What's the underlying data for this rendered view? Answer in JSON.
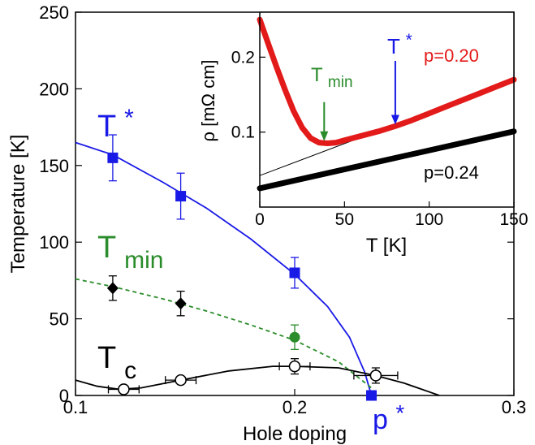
{
  "chart_data": [
    {
      "type": "scatter",
      "xlabel": "Hole doping",
      "ylabel": "Temperature [K]",
      "xlim": [
        0.1,
        0.3
      ],
      "ylim": [
        0,
        250
      ],
      "xticks": [
        0.1,
        0.2,
        0.3
      ],
      "xtick_labels": [
        "0.1",
        "0.2",
        "0.3"
      ],
      "yticks": [
        0,
        50,
        100,
        150,
        200,
        250
      ],
      "ytick_labels": [
        "0",
        "50",
        "100",
        "150",
        "200",
        "250"
      ],
      "grid": false,
      "legend": "none",
      "labels": {
        "tstar": {
          "main": "T",
          "sup": "*"
        },
        "tmin": {
          "main": "T",
          "sub": "min"
        },
        "tc": {
          "main": "T",
          "sub": "c"
        },
        "pstar": {
          "main": "p",
          "sup": "*"
        }
      },
      "series": [
        {
          "key": "tstar",
          "color": "#1a1ae6",
          "marker": "square",
          "points": [
            {
              "x": 0.117,
              "y": 155,
              "yerr": 15
            },
            {
              "x": 0.148,
              "y": 130,
              "yerr": 15
            },
            {
              "x": 0.2,
              "y": 80,
              "yerr": 10
            },
            {
              "x": 0.235,
              "y": 0
            }
          ],
          "curve": {
            "style": "solid",
            "points": [
              [
                0.1,
                165
              ],
              [
                0.117,
                157
              ],
              [
                0.14,
                139
              ],
              [
                0.16,
                122
              ],
              [
                0.18,
                102
              ],
              [
                0.2,
                79
              ],
              [
                0.215,
                58
              ],
              [
                0.225,
                38
              ],
              [
                0.232,
                15
              ],
              [
                0.235,
                0
              ]
            ]
          }
        },
        {
          "key": "tmin_black",
          "color": "#000000",
          "marker": "diamond",
          "points": [
            {
              "x": 0.117,
              "y": 70,
              "yerr": 8
            },
            {
              "x": 0.148,
              "y": 60,
              "yerr": 8
            }
          ]
        },
        {
          "key": "tmin_green",
          "color": "#2a8c2a",
          "marker": "circle-filled",
          "points": [
            {
              "x": 0.2,
              "y": 38,
              "yerr": 8
            }
          ],
          "curve": {
            "style": "dashed",
            "points": [
              [
                0.1,
                76
              ],
              [
                0.117,
                71
              ],
              [
                0.14,
                63
              ],
              [
                0.16,
                55
              ],
              [
                0.18,
                46
              ],
              [
                0.2,
                36
              ],
              [
                0.22,
                22
              ],
              [
                0.235,
                5
              ]
            ]
          }
        },
        {
          "key": "tc",
          "color": "#000000",
          "marker": "circle-open",
          "points": [
            {
              "x": 0.122,
              "y": 4,
              "xerr": 0.007
            },
            {
              "x": 0.148,
              "y": 10,
              "xerr": 0.007
            },
            {
              "x": 0.2,
              "y": 19,
              "yerr": 5,
              "xerr": 0.007
            },
            {
              "x": 0.237,
              "y": 13,
              "yerr": 5,
              "xerr": 0.01
            }
          ],
          "curve": {
            "style": "solid",
            "points": [
              [
                0.1,
                10
              ],
              [
                0.11,
                6
              ],
              [
                0.12,
                4
              ],
              [
                0.13,
                5
              ],
              [
                0.148,
                10
              ],
              [
                0.17,
                16
              ],
              [
                0.19,
                19
              ],
              [
                0.2,
                19
              ],
              [
                0.22,
                18
              ],
              [
                0.237,
                13
              ],
              [
                0.25,
                8
              ],
              [
                0.262,
                2
              ],
              [
                0.266,
                0
              ]
            ]
          }
        }
      ]
    },
    {
      "type": "line",
      "xlabel": "T [K]",
      "ylabel": "ρ [mΩ cm]",
      "xlim": [
        0,
        150
      ],
      "ylim": [
        0,
        0.26
      ],
      "xticks": [
        0,
        50,
        100,
        150
      ],
      "xtick_labels": [
        "0",
        "50",
        "100",
        "150"
      ],
      "yticks": [
        0.1,
        0.2
      ],
      "ytick_labels": [
        "0.1",
        "0.2"
      ],
      "grid": false,
      "legend": "none",
      "series": [
        {
          "name": "p=0.20",
          "color": "#e31a1a",
          "points": [
            [
              0,
              0.25
            ],
            [
              5,
              0.218
            ],
            [
              10,
              0.186
            ],
            [
              15,
              0.156
            ],
            [
              20,
              0.128
            ],
            [
              25,
              0.106
            ],
            [
              30,
              0.092
            ],
            [
              35,
              0.086
            ],
            [
              40,
              0.085
            ],
            [
              45,
              0.086
            ],
            [
              50,
              0.089
            ],
            [
              60,
              0.095
            ],
            [
              70,
              0.101
            ],
            [
              80,
              0.108
            ],
            [
              90,
              0.116
            ],
            [
              100,
              0.125
            ],
            [
              110,
              0.134
            ],
            [
              120,
              0.143
            ],
            [
              130,
              0.152
            ],
            [
              140,
              0.161
            ],
            [
              150,
              0.17
            ]
          ]
        },
        {
          "name": "p=0.24",
          "color": "#000000",
          "points": [
            [
              0,
              0.025
            ],
            [
              150,
              0.101
            ]
          ]
        }
      ],
      "fit_line": {
        "color": "#000000",
        "points": [
          [
            0,
            0.042
          ],
          [
            150,
            0.17
          ]
        ]
      },
      "annotations": {
        "tmin": {
          "main": "T",
          "sub": "min",
          "x": 38,
          "y_from": 0.14,
          "y_to": 0.088,
          "color": "#2a8c2a"
        },
        "tstar": {
          "main": "T",
          "sup": "*",
          "x": 80,
          "y_from": 0.195,
          "y_to": 0.11,
          "color": "#1a1ae6"
        }
      }
    }
  ]
}
